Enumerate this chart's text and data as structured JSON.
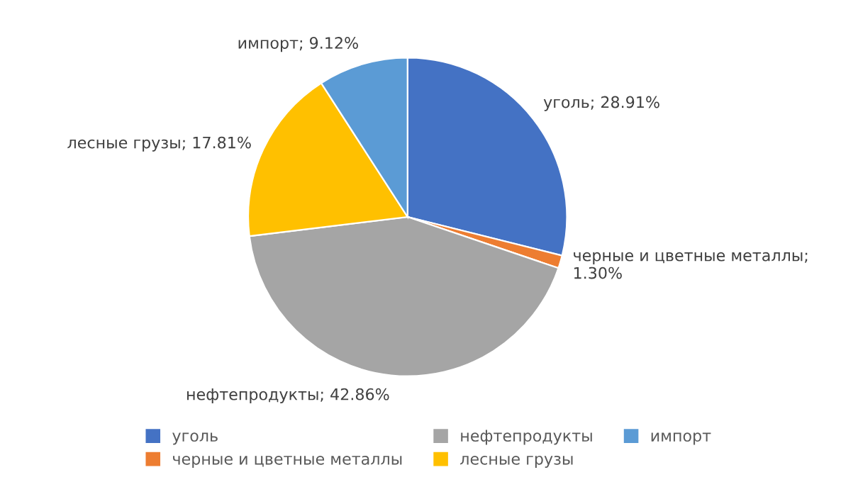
{
  "chart_data": {
    "type": "pie",
    "categories": [
      "уголь",
      "черные и цветные металлы",
      "нефтепродукты",
      "лесные грузы",
      "импорт"
    ],
    "values": [
      28.91,
      1.3,
      42.86,
      17.81,
      9.12
    ],
    "value_labels": [
      "; 28.91%",
      "; 1.30%",
      "; 42.86%",
      "; 17.81%",
      "; 9.12%"
    ],
    "colors": [
      "#4472c4",
      "#ed7d31",
      "#a5a5a5",
      "#ffc000",
      "#5b9bd5"
    ],
    "legend": "bottom"
  }
}
